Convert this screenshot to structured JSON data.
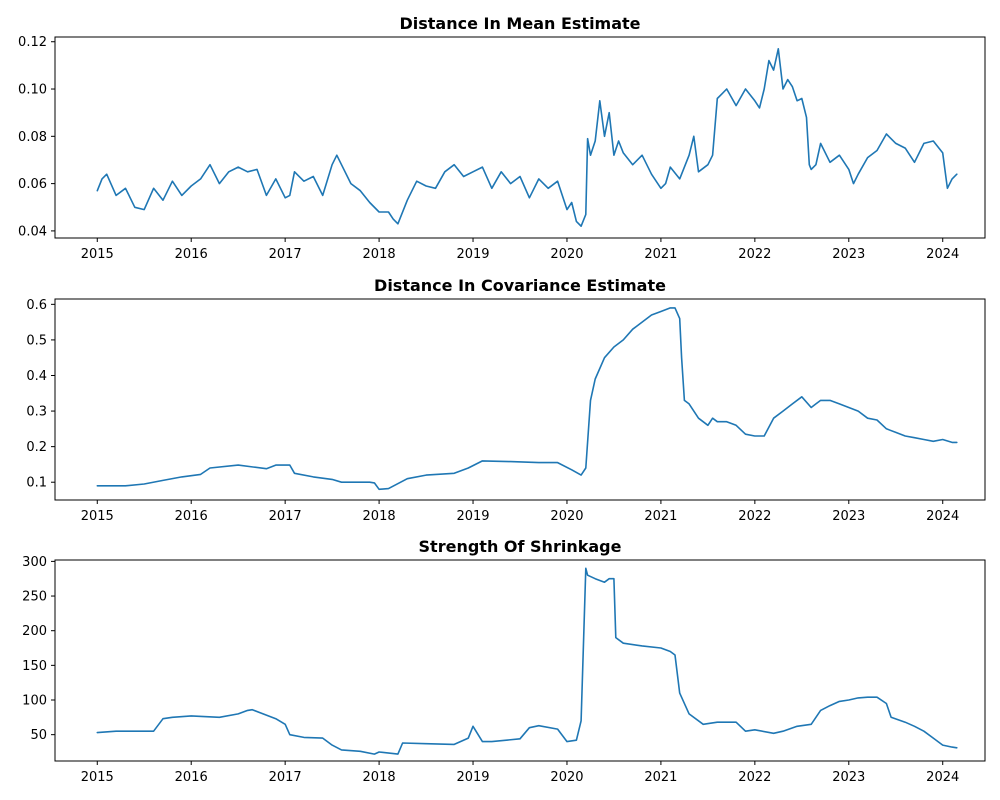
{
  "colors": {
    "series": "#1f77b4",
    "axes": "#000000",
    "background": "#ffffff"
  },
  "chart_data": [
    {
      "type": "line",
      "title": "Distance In Mean Estimate",
      "xlabel": "",
      "ylabel": "",
      "xlim": [
        2014.55,
        2024.45
      ],
      "ylim": [
        0.037,
        0.122
      ],
      "x_ticks": [
        2015,
        2016,
        2017,
        2018,
        2019,
        2020,
        2021,
        2022,
        2023,
        2024
      ],
      "x_tick_labels": [
        "2015",
        "2016",
        "2017",
        "2018",
        "2019",
        "2020",
        "2021",
        "2022",
        "2023",
        "2024"
      ],
      "y_ticks": [
        0.04,
        0.06,
        0.08,
        0.1,
        0.12
      ],
      "y_tick_labels": [
        "0.04",
        "0.06",
        "0.08",
        "0.10",
        "0.12"
      ],
      "grid": false,
      "series": [
        {
          "x": [
            2015.0,
            2015.05,
            2015.1,
            2015.2,
            2015.3,
            2015.4,
            2015.5,
            2015.6,
            2015.7,
            2015.8,
            2015.9,
            2016.0,
            2016.1,
            2016.2,
            2016.3,
            2016.4,
            2016.5,
            2016.6,
            2016.7,
            2016.8,
            2016.9,
            2017.0,
            2017.05,
            2017.1,
            2017.2,
            2017.3,
            2017.4,
            2017.5,
            2017.55,
            2017.6,
            2017.7,
            2017.8,
            2017.9,
            2018.0,
            2018.1,
            2018.15,
            2018.2,
            2018.3,
            2018.4,
            2018.5,
            2018.6,
            2018.7,
            2018.8,
            2018.9,
            2019.0,
            2019.1,
            2019.2,
            2019.3,
            2019.4,
            2019.5,
            2019.6,
            2019.7,
            2019.8,
            2019.9,
            2020.0,
            2020.05,
            2020.1,
            2020.15,
            2020.2,
            2020.22,
            2020.25,
            2020.3,
            2020.35,
            2020.4,
            2020.45,
            2020.5,
            2020.55,
            2020.6,
            2020.7,
            2020.8,
            2020.9,
            2021.0,
            2021.05,
            2021.1,
            2021.2,
            2021.3,
            2021.35,
            2021.4,
            2021.5,
            2021.55,
            2021.6,
            2021.65,
            2021.7,
            2021.8,
            2021.9,
            2022.0,
            2022.05,
            2022.1,
            2022.15,
            2022.2,
            2022.25,
            2022.3,
            2022.35,
            2022.4,
            2022.45,
            2022.5,
            2022.55,
            2022.58,
            2022.6,
            2022.65,
            2022.7,
            2022.8,
            2022.9,
            2023.0,
            2023.05,
            2023.1,
            2023.2,
            2023.3,
            2023.4,
            2023.5,
            2023.6,
            2023.7,
            2023.8,
            2023.9,
            2024.0,
            2024.05,
            2024.1,
            2024.15
          ],
          "y": [
            0.057,
            0.062,
            0.064,
            0.055,
            0.058,
            0.05,
            0.049,
            0.058,
            0.053,
            0.061,
            0.055,
            0.059,
            0.062,
            0.068,
            0.06,
            0.065,
            0.067,
            0.065,
            0.066,
            0.055,
            0.062,
            0.054,
            0.055,
            0.065,
            0.061,
            0.063,
            0.055,
            0.068,
            0.072,
            0.068,
            0.06,
            0.057,
            0.052,
            0.048,
            0.048,
            0.045,
            0.043,
            0.053,
            0.061,
            0.059,
            0.058,
            0.065,
            0.068,
            0.063,
            0.065,
            0.067,
            0.058,
            0.065,
            0.06,
            0.063,
            0.054,
            0.062,
            0.058,
            0.061,
            0.049,
            0.052,
            0.044,
            0.042,
            0.047,
            0.079,
            0.072,
            0.078,
            0.095,
            0.08,
            0.09,
            0.072,
            0.078,
            0.073,
            0.068,
            0.072,
            0.064,
            0.058,
            0.06,
            0.067,
            0.062,
            0.072,
            0.08,
            0.065,
            0.068,
            0.072,
            0.096,
            0.098,
            0.1,
            0.093,
            0.1,
            0.095,
            0.092,
            0.1,
            0.112,
            0.108,
            0.117,
            0.1,
            0.104,
            0.101,
            0.095,
            0.096,
            0.088,
            0.068,
            0.066,
            0.068,
            0.077,
            0.069,
            0.072,
            0.066,
            0.06,
            0.064,
            0.071,
            0.074,
            0.081,
            0.077,
            0.075,
            0.069,
            0.077,
            0.078,
            0.073,
            0.058,
            0.062,
            0.064
          ]
        }
      ]
    },
    {
      "type": "line",
      "title": "Distance In Covariance Estimate",
      "xlabel": "",
      "ylabel": "",
      "xlim": [
        2014.55,
        2024.45
      ],
      "ylim": [
        0.05,
        0.615
      ],
      "x_ticks": [
        2015,
        2016,
        2017,
        2018,
        2019,
        2020,
        2021,
        2022,
        2023,
        2024
      ],
      "x_tick_labels": [
        "2015",
        "2016",
        "2017",
        "2018",
        "2019",
        "2020",
        "2021",
        "2022",
        "2023",
        "2024"
      ],
      "y_ticks": [
        0.1,
        0.2,
        0.3,
        0.4,
        0.5,
        0.6
      ],
      "y_tick_labels": [
        "0.1",
        "0.2",
        "0.3",
        "0.4",
        "0.5",
        "0.6"
      ],
      "grid": false,
      "series": [
        {
          "x": [
            2015.0,
            2015.3,
            2015.5,
            2015.7,
            2015.9,
            2016.1,
            2016.2,
            2016.5,
            2016.8,
            2016.9,
            2017.05,
            2017.1,
            2017.3,
            2017.5,
            2017.6,
            2017.9,
            2017.95,
            2018.0,
            2018.1,
            2018.3,
            2018.5,
            2018.8,
            2018.95,
            2019.1,
            2019.4,
            2019.7,
            2019.9,
            2020.05,
            2020.15,
            2020.2,
            2020.25,
            2020.3,
            2020.4,
            2020.5,
            2020.6,
            2020.7,
            2020.8,
            2020.9,
            2021.0,
            2021.1,
            2021.15,
            2021.2,
            2021.22,
            2021.25,
            2021.3,
            2021.4,
            2021.5,
            2021.55,
            2021.6,
            2021.7,
            2021.8,
            2021.9,
            2022.0,
            2022.1,
            2022.2,
            2022.3,
            2022.4,
            2022.5,
            2022.6,
            2022.65,
            2022.7,
            2022.8,
            2022.9,
            2023.0,
            2023.1,
            2023.2,
            2023.3,
            2023.4,
            2023.5,
            2023.6,
            2023.7,
            2023.8,
            2023.9,
            2024.0,
            2024.1,
            2024.15
          ],
          "y": [
            0.09,
            0.09,
            0.095,
            0.105,
            0.115,
            0.122,
            0.14,
            0.148,
            0.138,
            0.148,
            0.148,
            0.125,
            0.115,
            0.108,
            0.1,
            0.1,
            0.098,
            0.08,
            0.082,
            0.11,
            0.12,
            0.125,
            0.14,
            0.16,
            0.158,
            0.155,
            0.155,
            0.135,
            0.12,
            0.14,
            0.33,
            0.39,
            0.45,
            0.48,
            0.5,
            0.53,
            0.55,
            0.57,
            0.58,
            0.59,
            0.59,
            0.56,
            0.45,
            0.33,
            0.32,
            0.28,
            0.26,
            0.28,
            0.27,
            0.27,
            0.26,
            0.235,
            0.23,
            0.23,
            0.28,
            0.3,
            0.32,
            0.34,
            0.31,
            0.32,
            0.33,
            0.33,
            0.32,
            0.31,
            0.3,
            0.28,
            0.275,
            0.25,
            0.24,
            0.23,
            0.225,
            0.22,
            0.215,
            0.22,
            0.212,
            0.212
          ]
        }
      ]
    },
    {
      "type": "line",
      "title": "Strength Of Shrinkage",
      "xlabel": "",
      "ylabel": "",
      "xlim": [
        2014.55,
        2024.45
      ],
      "ylim": [
        12,
        302
      ],
      "x_ticks": [
        2015,
        2016,
        2017,
        2018,
        2019,
        2020,
        2021,
        2022,
        2023,
        2024
      ],
      "x_tick_labels": [
        "2015",
        "2016",
        "2017",
        "2018",
        "2019",
        "2020",
        "2021",
        "2022",
        "2023",
        "2024"
      ],
      "y_ticks": [
        50,
        100,
        150,
        200,
        250,
        300
      ],
      "y_tick_labels": [
        "50",
        "100",
        "150",
        "200",
        "250",
        "300"
      ],
      "grid": false,
      "series": [
        {
          "x": [
            2015.0,
            2015.2,
            2015.5,
            2015.6,
            2015.7,
            2015.8,
            2016.0,
            2016.3,
            2016.5,
            2016.6,
            2016.65,
            2016.9,
            2017.0,
            2017.05,
            2017.2,
            2017.4,
            2017.5,
            2017.6,
            2017.8,
            2017.95,
            2018.0,
            2018.2,
            2018.25,
            2018.5,
            2018.8,
            2018.95,
            2019.0,
            2019.1,
            2019.2,
            2019.5,
            2019.6,
            2019.7,
            2019.9,
            2020.0,
            2020.1,
            2020.15,
            2020.2,
            2020.22,
            2020.3,
            2020.4,
            2020.45,
            2020.5,
            2020.52,
            2020.6,
            2020.8,
            2021.0,
            2021.1,
            2021.15,
            2021.2,
            2021.3,
            2021.45,
            2021.6,
            2021.8,
            2021.9,
            2022.0,
            2022.2,
            2022.3,
            2022.45,
            2022.6,
            2022.7,
            2022.8,
            2022.9,
            2023.0,
            2023.1,
            2023.2,
            2023.3,
            2023.4,
            2023.45,
            2023.6,
            2023.7,
            2023.8,
            2023.9,
            2024.0,
            2024.1,
            2024.15
          ],
          "y": [
            53,
            55,
            55,
            55,
            73,
            75,
            77,
            75,
            80,
            85,
            86,
            73,
            65,
            50,
            46,
            45,
            35,
            28,
            26,
            22,
            25,
            22,
            38,
            37,
            36,
            45,
            62,
            40,
            40,
            44,
            60,
            63,
            58,
            40,
            42,
            70,
            290,
            280,
            275,
            270,
            275,
            275,
            190,
            182,
            178,
            175,
            170,
            165,
            110,
            80,
            65,
            68,
            68,
            55,
            57,
            52,
            55,
            62,
            65,
            85,
            92,
            98,
            100,
            103,
            104,
            104,
            95,
            75,
            68,
            62,
            55,
            45,
            35,
            32,
            31
          ]
        }
      ]
    }
  ]
}
